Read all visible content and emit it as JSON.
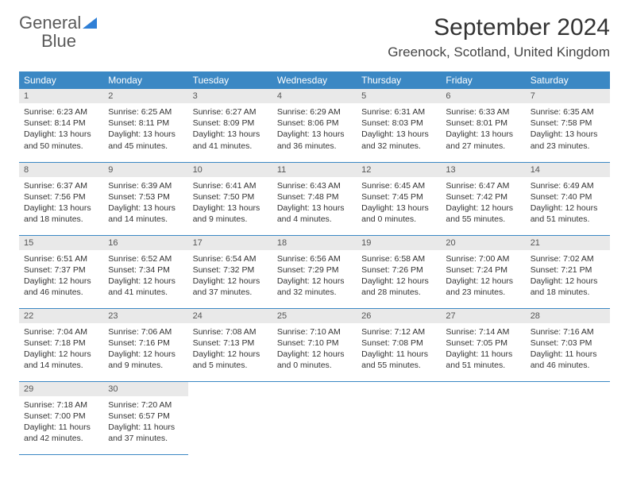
{
  "logo": {
    "text1": "General",
    "text2": "Blue"
  },
  "header": {
    "month_title": "September 2024",
    "location": "Greenock, Scotland, United Kingdom"
  },
  "colors": {
    "header_bg": "#3b88c4",
    "header_text": "#ffffff",
    "daynum_bg": "#e9e9e9",
    "row_border": "#3b88c4",
    "logo_gray": "#5a5a5a",
    "logo_blue": "#2f7fd6"
  },
  "weekdays": [
    "Sunday",
    "Monday",
    "Tuesday",
    "Wednesday",
    "Thursday",
    "Friday",
    "Saturday"
  ],
  "days": [
    {
      "n": "1",
      "sunrise": "Sunrise: 6:23 AM",
      "sunset": "Sunset: 8:14 PM",
      "daylight": "Daylight: 13 hours and 50 minutes."
    },
    {
      "n": "2",
      "sunrise": "Sunrise: 6:25 AM",
      "sunset": "Sunset: 8:11 PM",
      "daylight": "Daylight: 13 hours and 45 minutes."
    },
    {
      "n": "3",
      "sunrise": "Sunrise: 6:27 AM",
      "sunset": "Sunset: 8:09 PM",
      "daylight": "Daylight: 13 hours and 41 minutes."
    },
    {
      "n": "4",
      "sunrise": "Sunrise: 6:29 AM",
      "sunset": "Sunset: 8:06 PM",
      "daylight": "Daylight: 13 hours and 36 minutes."
    },
    {
      "n": "5",
      "sunrise": "Sunrise: 6:31 AM",
      "sunset": "Sunset: 8:03 PM",
      "daylight": "Daylight: 13 hours and 32 minutes."
    },
    {
      "n": "6",
      "sunrise": "Sunrise: 6:33 AM",
      "sunset": "Sunset: 8:01 PM",
      "daylight": "Daylight: 13 hours and 27 minutes."
    },
    {
      "n": "7",
      "sunrise": "Sunrise: 6:35 AM",
      "sunset": "Sunset: 7:58 PM",
      "daylight": "Daylight: 13 hours and 23 minutes."
    },
    {
      "n": "8",
      "sunrise": "Sunrise: 6:37 AM",
      "sunset": "Sunset: 7:56 PM",
      "daylight": "Daylight: 13 hours and 18 minutes."
    },
    {
      "n": "9",
      "sunrise": "Sunrise: 6:39 AM",
      "sunset": "Sunset: 7:53 PM",
      "daylight": "Daylight: 13 hours and 14 minutes."
    },
    {
      "n": "10",
      "sunrise": "Sunrise: 6:41 AM",
      "sunset": "Sunset: 7:50 PM",
      "daylight": "Daylight: 13 hours and 9 minutes."
    },
    {
      "n": "11",
      "sunrise": "Sunrise: 6:43 AM",
      "sunset": "Sunset: 7:48 PM",
      "daylight": "Daylight: 13 hours and 4 minutes."
    },
    {
      "n": "12",
      "sunrise": "Sunrise: 6:45 AM",
      "sunset": "Sunset: 7:45 PM",
      "daylight": "Daylight: 13 hours and 0 minutes."
    },
    {
      "n": "13",
      "sunrise": "Sunrise: 6:47 AM",
      "sunset": "Sunset: 7:42 PM",
      "daylight": "Daylight: 12 hours and 55 minutes."
    },
    {
      "n": "14",
      "sunrise": "Sunrise: 6:49 AM",
      "sunset": "Sunset: 7:40 PM",
      "daylight": "Daylight: 12 hours and 51 minutes."
    },
    {
      "n": "15",
      "sunrise": "Sunrise: 6:51 AM",
      "sunset": "Sunset: 7:37 PM",
      "daylight": "Daylight: 12 hours and 46 minutes."
    },
    {
      "n": "16",
      "sunrise": "Sunrise: 6:52 AM",
      "sunset": "Sunset: 7:34 PM",
      "daylight": "Daylight: 12 hours and 41 minutes."
    },
    {
      "n": "17",
      "sunrise": "Sunrise: 6:54 AM",
      "sunset": "Sunset: 7:32 PM",
      "daylight": "Daylight: 12 hours and 37 minutes."
    },
    {
      "n": "18",
      "sunrise": "Sunrise: 6:56 AM",
      "sunset": "Sunset: 7:29 PM",
      "daylight": "Daylight: 12 hours and 32 minutes."
    },
    {
      "n": "19",
      "sunrise": "Sunrise: 6:58 AM",
      "sunset": "Sunset: 7:26 PM",
      "daylight": "Daylight: 12 hours and 28 minutes."
    },
    {
      "n": "20",
      "sunrise": "Sunrise: 7:00 AM",
      "sunset": "Sunset: 7:24 PM",
      "daylight": "Daylight: 12 hours and 23 minutes."
    },
    {
      "n": "21",
      "sunrise": "Sunrise: 7:02 AM",
      "sunset": "Sunset: 7:21 PM",
      "daylight": "Daylight: 12 hours and 18 minutes."
    },
    {
      "n": "22",
      "sunrise": "Sunrise: 7:04 AM",
      "sunset": "Sunset: 7:18 PM",
      "daylight": "Daylight: 12 hours and 14 minutes."
    },
    {
      "n": "23",
      "sunrise": "Sunrise: 7:06 AM",
      "sunset": "Sunset: 7:16 PM",
      "daylight": "Daylight: 12 hours and 9 minutes."
    },
    {
      "n": "24",
      "sunrise": "Sunrise: 7:08 AM",
      "sunset": "Sunset: 7:13 PM",
      "daylight": "Daylight: 12 hours and 5 minutes."
    },
    {
      "n": "25",
      "sunrise": "Sunrise: 7:10 AM",
      "sunset": "Sunset: 7:10 PM",
      "daylight": "Daylight: 12 hours and 0 minutes."
    },
    {
      "n": "26",
      "sunrise": "Sunrise: 7:12 AM",
      "sunset": "Sunset: 7:08 PM",
      "daylight": "Daylight: 11 hours and 55 minutes."
    },
    {
      "n": "27",
      "sunrise": "Sunrise: 7:14 AM",
      "sunset": "Sunset: 7:05 PM",
      "daylight": "Daylight: 11 hours and 51 minutes."
    },
    {
      "n": "28",
      "sunrise": "Sunrise: 7:16 AM",
      "sunset": "Sunset: 7:03 PM",
      "daylight": "Daylight: 11 hours and 46 minutes."
    },
    {
      "n": "29",
      "sunrise": "Sunrise: 7:18 AM",
      "sunset": "Sunset: 7:00 PM",
      "daylight": "Daylight: 11 hours and 42 minutes."
    },
    {
      "n": "30",
      "sunrise": "Sunrise: 7:20 AM",
      "sunset": "Sunset: 6:57 PM",
      "daylight": "Daylight: 11 hours and 37 minutes."
    }
  ]
}
